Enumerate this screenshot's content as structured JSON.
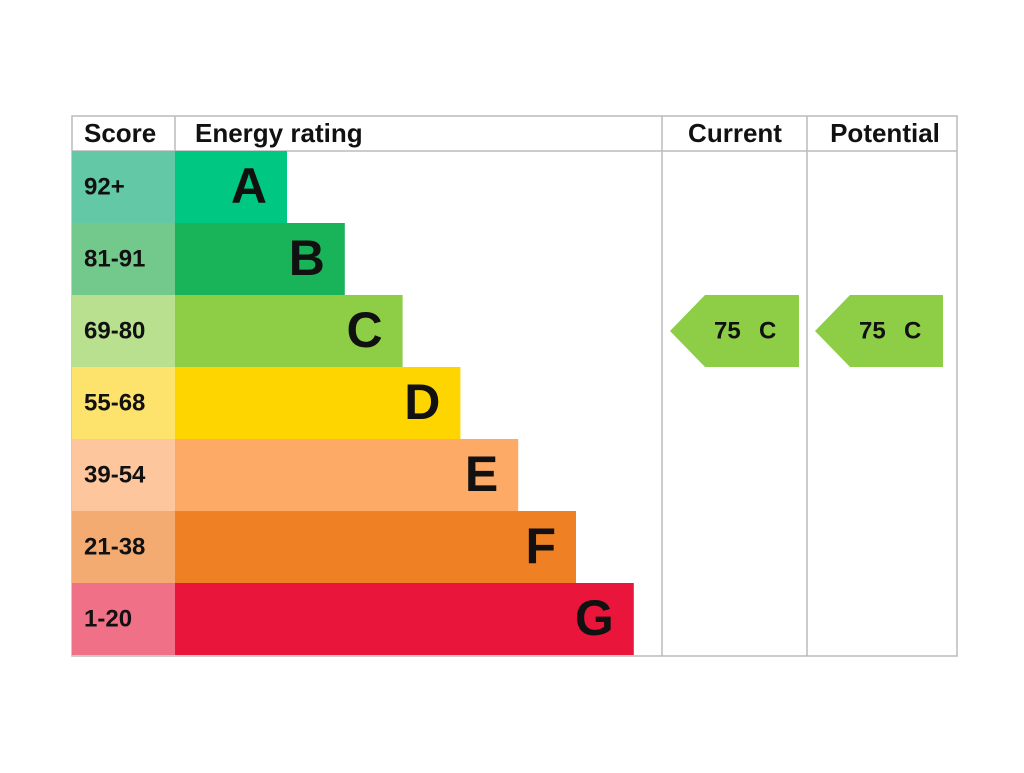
{
  "header": {
    "score": "Score",
    "rating": "Energy rating",
    "current": "Current",
    "potential": "Potential"
  },
  "bands": [
    {
      "score": "92+",
      "letter": "A",
      "color": "#00c781",
      "score_color": "#63c8a5"
    },
    {
      "score": "81-91",
      "letter": "B",
      "color": "#19b459",
      "score_color": "#73c98c"
    },
    {
      "score": "69-80",
      "letter": "C",
      "color": "#8dce46",
      "score_color": "#b8e08f"
    },
    {
      "score": "55-68",
      "letter": "D",
      "color": "#ffd500",
      "score_color": "#fde36b"
    },
    {
      "score": "39-54",
      "letter": "E",
      "color": "#fcaa65",
      "score_color": "#fdc69d"
    },
    {
      "score": "21-38",
      "letter": "F",
      "color": "#ef8023",
      "score_color": "#f4ab72"
    },
    {
      "score": "1-20",
      "letter": "G",
      "color": "#e9153b",
      "score_color": "#f07088"
    }
  ],
  "current": {
    "value": 75,
    "band": "C"
  },
  "potential": {
    "value": 75,
    "band": "C"
  }
}
